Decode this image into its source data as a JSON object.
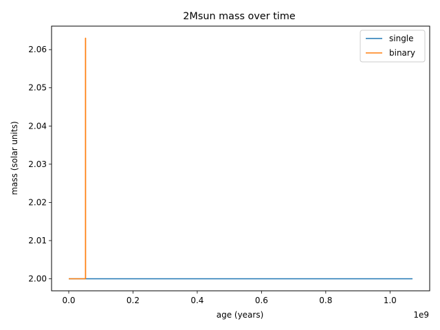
{
  "chart_data": {
    "type": "line",
    "title": "2Msun mass over time",
    "xlabel": "age (years)",
    "ylabel": "mass (solar units)",
    "x_offset_label": "1e9",
    "xlim": [
      -0.0535,
      1.1235
    ],
    "ylim": [
      1.99685,
      2.06615
    ],
    "xticks": [
      0.0,
      0.2,
      0.4,
      0.6,
      0.8,
      1.0
    ],
    "xtick_labels": [
      "0.0",
      "0.2",
      "0.4",
      "0.6",
      "0.8",
      "1.0"
    ],
    "yticks": [
      2.0,
      2.01,
      2.02,
      2.03,
      2.04,
      2.05,
      2.06
    ],
    "ytick_labels": [
      "2.00",
      "2.01",
      "2.02",
      "2.03",
      "2.04",
      "2.05",
      "2.06"
    ],
    "x_units_note": "x values in units of 1e9 years",
    "grid": false,
    "legend_position": "top-right",
    "series": [
      {
        "name": "single",
        "color": "#1f77b4",
        "x": [
          0.0,
          0.05,
          0.2,
          0.4,
          0.6,
          0.8,
          1.07
        ],
        "y": [
          2.0,
          2.0,
          2.0,
          2.0,
          2.0,
          2.0,
          2.0
        ]
      },
      {
        "name": "binary",
        "color": "#ff7f0e",
        "x": [
          0.0,
          0.052,
          0.052,
          0.0525,
          0.0525
        ],
        "y": [
          2.0,
          2.0,
          2.063,
          2.063,
          2.0
        ]
      }
    ]
  }
}
